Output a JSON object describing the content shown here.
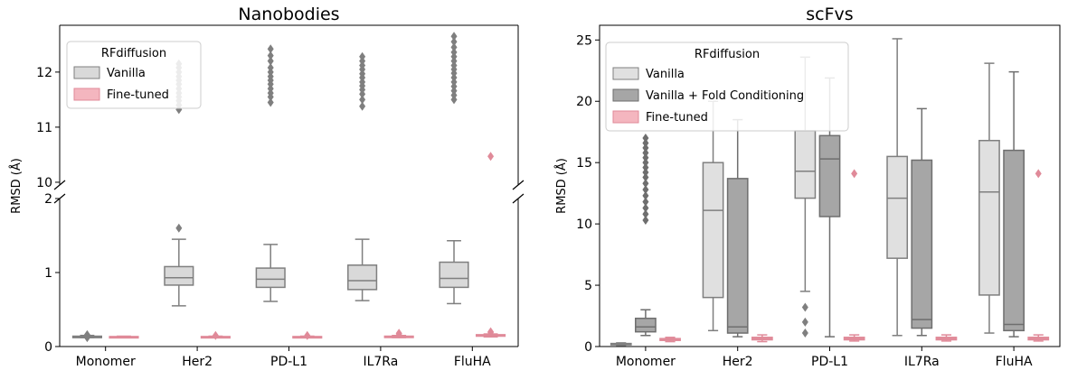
{
  "chart_data": [
    {
      "type": "box",
      "title": "Nanobodies",
      "xlabel": "",
      "ylabel": "RMSD (Å)",
      "axis_break": true,
      "ylim_upper": [
        9.95,
        12.85
      ],
      "ylim_lower": [
        0,
        2
      ],
      "yticks_upper": [
        10,
        11,
        12
      ],
      "yticks_lower": [
        0,
        1,
        2
      ],
      "categories": [
        "Monomer",
        "Her2",
        "PD-L1",
        "IL7Ra",
        "FluHA"
      ],
      "legend": {
        "title": "RFdiffusion",
        "position": "top-left"
      },
      "series": [
        {
          "name": "Vanilla",
          "color": "#d9d9d9",
          "edge": "#7f7f7f",
          "boxes": [
            {
              "min": 0.12,
              "q1": 0.12,
              "median": 0.13,
              "q3": 0.14,
              "max": 0.15,
              "outliers": [
                0.14,
                0.15,
                0.16,
                0.12,
                0.13
              ]
            },
            {
              "min": 0.55,
              "q1": 0.83,
              "median": 0.93,
              "q3": 1.08,
              "max": 1.45,
              "outliers": [
                1.6,
                11.32,
                11.4,
                11.48,
                11.55,
                11.62,
                11.7,
                11.78,
                11.85,
                11.92,
                12.0,
                12.08,
                12.15
              ]
            },
            {
              "min": 0.61,
              "q1": 0.8,
              "median": 0.91,
              "q3": 1.06,
              "max": 1.38,
              "outliers": [
                11.45,
                11.55,
                11.62,
                11.7,
                11.78,
                11.85,
                11.92,
                12.0,
                12.08,
                12.2,
                12.3,
                12.42
              ]
            },
            {
              "min": 0.62,
              "q1": 0.77,
              "median": 0.89,
              "q3": 1.1,
              "max": 1.45,
              "outliers": [
                11.38,
                11.5,
                11.6,
                11.68,
                11.75,
                11.82,
                11.9,
                11.97,
                12.05,
                12.12,
                12.2,
                12.28
              ]
            },
            {
              "min": 0.58,
              "q1": 0.8,
              "median": 0.92,
              "q3": 1.14,
              "max": 1.43,
              "outliers": [
                11.5,
                11.58,
                11.66,
                11.74,
                11.82,
                11.9,
                11.98,
                12.05,
                12.12,
                12.2,
                12.28,
                12.36,
                12.45,
                12.55,
                12.65
              ]
            }
          ]
        },
        {
          "name": "Fine-tuned",
          "color": "#f4b6bf",
          "edge": "#e08a99",
          "boxes": [
            {
              "min": 0.12,
              "q1": 0.125,
              "median": 0.13,
              "q3": 0.135,
              "max": 0.14,
              "outliers": []
            },
            {
              "min": 0.12,
              "q1": 0.125,
              "median": 0.13,
              "q3": 0.135,
              "max": 0.14,
              "outliers": [
                0.15
              ]
            },
            {
              "min": 0.12,
              "q1": 0.125,
              "median": 0.13,
              "q3": 0.135,
              "max": 0.14,
              "outliers": [
                0.15
              ]
            },
            {
              "min": 0.12,
              "q1": 0.125,
              "median": 0.13,
              "q3": 0.14,
              "max": 0.15,
              "outliers": [
                0.17,
                0.18
              ]
            },
            {
              "min": 0.13,
              "q1": 0.14,
              "median": 0.15,
              "q3": 0.16,
              "max": 0.17,
              "outliers": [
                0.19,
                0.2,
                10.47
              ]
            }
          ]
        }
      ]
    },
    {
      "type": "box",
      "title": "scFvs",
      "xlabel": "",
      "ylabel": "RMSD (Å)",
      "ylim": [
        0,
        26.2
      ],
      "yticks": [
        0,
        5,
        10,
        15,
        20,
        25
      ],
      "categories": [
        "Monomer",
        "Her2",
        "PD-L1",
        "IL7Ra",
        "FluHA"
      ],
      "legend": {
        "title": "RFdiffusion",
        "position": "top-left"
      },
      "series": [
        {
          "name": "Vanilla",
          "color": "#e0e0e0",
          "edge": "#7f7f7f",
          "boxes": [
            {
              "min": 0.1,
              "q1": 0.15,
              "median": 0.2,
              "q3": 0.25,
              "max": 0.3,
              "outliers": []
            },
            {
              "min": 1.3,
              "q1": 4.0,
              "median": 11.1,
              "q3": 15.0,
              "max": 20.0,
              "outliers": []
            },
            {
              "min": 4.5,
              "q1": 12.1,
              "median": 14.3,
              "q3": 17.6,
              "max": 23.6,
              "outliers": [
                1.1,
                2.0,
                3.2
              ]
            },
            {
              "min": 0.9,
              "q1": 7.2,
              "median": 12.1,
              "q3": 15.5,
              "max": 25.1,
              "outliers": []
            },
            {
              "min": 1.1,
              "q1": 4.2,
              "median": 12.6,
              "q3": 16.8,
              "max": 23.1,
              "outliers": []
            }
          ]
        },
        {
          "name": "Vanilla + Fold Conditioning",
          "color": "#a6a6a6",
          "edge": "#6e6e6e",
          "boxes": [
            {
              "min": 0.9,
              "q1": 1.2,
              "median": 1.6,
              "q3": 2.3,
              "max": 3.0,
              "outliers": [
                10.3,
                10.8,
                11.3,
                11.8,
                12.3,
                12.8,
                13.3,
                13.8,
                14.2,
                14.6,
                15.0,
                15.4,
                15.8,
                16.2,
                16.6,
                17.0
              ]
            },
            {
              "min": 0.8,
              "q1": 1.1,
              "median": 1.6,
              "q3": 13.7,
              "max": 18.5,
              "outliers": []
            },
            {
              "min": 0.8,
              "q1": 10.6,
              "median": 15.3,
              "q3": 17.2,
              "max": 21.9,
              "outliers": []
            },
            {
              "min": 0.9,
              "q1": 1.5,
              "median": 2.2,
              "q3": 15.2,
              "max": 19.4,
              "outliers": []
            },
            {
              "min": 0.8,
              "q1": 1.3,
              "median": 1.8,
              "q3": 16.0,
              "max": 22.4,
              "outliers": []
            }
          ]
        },
        {
          "name": "Fine-tuned",
          "color": "#f4b6bf",
          "edge": "#e08a99",
          "boxes": [
            {
              "min": 0.4,
              "q1": 0.5,
              "median": 0.6,
              "q3": 0.65,
              "max": 0.75,
              "outliers": []
            },
            {
              "min": 0.4,
              "q1": 0.55,
              "median": 0.65,
              "q3": 0.75,
              "max": 0.95,
              "outliers": []
            },
            {
              "min": 0.45,
              "q1": 0.55,
              "median": 0.65,
              "q3": 0.75,
              "max": 0.95,
              "outliers": [
                14.1
              ]
            },
            {
              "min": 0.45,
              "q1": 0.55,
              "median": 0.65,
              "q3": 0.75,
              "max": 0.95,
              "outliers": []
            },
            {
              "min": 0.45,
              "q1": 0.55,
              "median": 0.65,
              "q3": 0.75,
              "max": 0.95,
              "outliers": [
                14.1
              ]
            }
          ]
        }
      ]
    }
  ]
}
